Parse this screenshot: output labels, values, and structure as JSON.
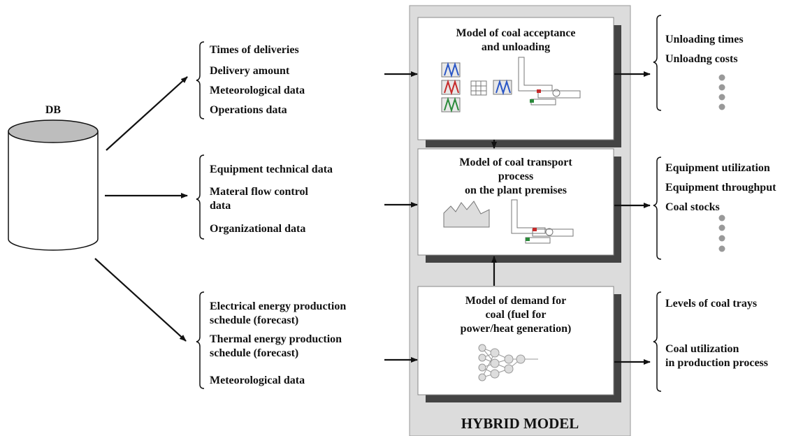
{
  "db_label": "DB",
  "inputs": [
    {
      "items": [
        [
          "Times of deliveries"
        ],
        [
          "Delivery amount"
        ],
        [
          "Meteorological data"
        ],
        [
          "Operations data"
        ]
      ]
    },
    {
      "items": [
        [
          "Equipment technical data"
        ],
        [
          "Materal flow control",
          "data"
        ],
        [
          "Organizational data"
        ]
      ]
    },
    {
      "items": [
        [
          "Electrical energy production",
          "schedule (forecast)"
        ],
        [
          "Thermal energy production",
          "schedule (forecast)"
        ],
        [
          "Meteorological data"
        ]
      ]
    }
  ],
  "models": [
    {
      "title": [
        "Model of coal acceptance",
        "and unloading"
      ]
    },
    {
      "title": [
        "Model of coal transport",
        "process",
        "on the plant premises"
      ]
    },
    {
      "title": [
        "Model of demand for",
        "coal (fuel for",
        "power/heat generation)"
      ]
    }
  ],
  "outputs": [
    {
      "items": [
        [
          "Unloading times"
        ],
        [
          "Unloadng costs"
        ]
      ]
    },
    {
      "items": [
        [
          "Equipment utilization"
        ],
        [
          "Equipment throughput"
        ],
        [
          "Coal stocks"
        ]
      ]
    },
    {
      "items": [
        [
          "Levels of coal trays"
        ],
        [
          "Coal utilization",
          "in production process"
        ]
      ]
    }
  ],
  "footer": "HYBRID MODEL"
}
